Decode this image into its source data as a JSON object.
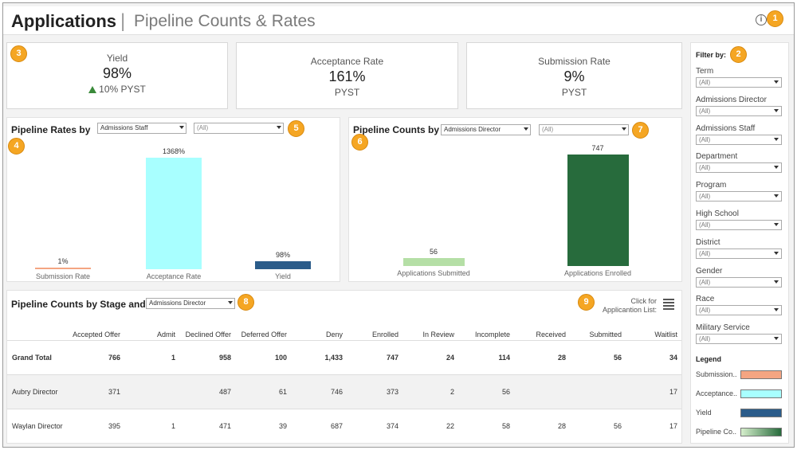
{
  "header": {
    "title": "Applications",
    "separator": "|",
    "subtitle": "Pipeline Counts & Rates",
    "info_glyph": "i"
  },
  "badges": [
    "1",
    "2",
    "3",
    "4",
    "5",
    "6",
    "7",
    "8",
    "9"
  ],
  "kpis": [
    {
      "label": "Yield",
      "value": "98%",
      "delta_icon": "triangle-up-icon",
      "delta_text": "10% PYST"
    },
    {
      "label": "Acceptance Rate",
      "value": "161%",
      "sub": "PYST"
    },
    {
      "label": "Submission Rate",
      "value": "9%",
      "sub": "PYST"
    }
  ],
  "pipeline_rates": {
    "title": "Pipeline Rates by",
    "dropdown": "Admissions Staff",
    "filter": "(All)"
  },
  "pipeline_counts": {
    "title": "Pipeline Counts by",
    "dropdown": "Admissions Director",
    "filter": "(All)"
  },
  "chart_data": [
    {
      "type": "bar",
      "categories": [
        "Submission Rate",
        "Acceptance Rate",
        "Yield"
      ],
      "values": [
        1,
        1368,
        98
      ],
      "value_labels": [
        "1%",
        "1368%",
        "98%"
      ],
      "ylim": [
        0,
        1368
      ],
      "colors": [
        "#f4a582",
        "#a8ffff",
        "#2b5c8a"
      ]
    },
    {
      "type": "bar",
      "categories": [
        "Applications Submitted",
        "Applications Enrolled"
      ],
      "values": [
        56,
        747
      ],
      "value_labels": [
        "56",
        "747"
      ],
      "ylim": [
        0,
        747
      ],
      "colors": [
        "#b5dfa6",
        "#276b3c"
      ]
    }
  ],
  "stage_table": {
    "title": "Pipeline Counts by Stage and",
    "dropdown": "Admissions Director",
    "click_for": "Click for",
    "app_list": "Applicantion List:",
    "columns": [
      "Accepted Offer",
      "Admit",
      "Declined Offer",
      "Deferred Offer",
      "Deny",
      "Enrolled",
      "In Review",
      "Incomplete",
      "Received",
      "Submitted",
      "Waitlist"
    ],
    "rows": [
      {
        "label": "Grand Total",
        "cells": [
          "766",
          "1",
          "958",
          "100",
          "1,433",
          "747",
          "24",
          "114",
          "28",
          "56",
          "34"
        ]
      },
      {
        "label": "Aubry Director",
        "cells": [
          "371",
          "",
          "487",
          "61",
          "746",
          "373",
          "2",
          "56",
          "",
          "",
          "17"
        ]
      },
      {
        "label": "Waylan Director",
        "cells": [
          "395",
          "1",
          "471",
          "39",
          "687",
          "374",
          "22",
          "58",
          "28",
          "56",
          "17"
        ]
      }
    ]
  },
  "sidebar": {
    "title": "Filter by:",
    "filters": [
      {
        "label": "Term",
        "value": "(All)"
      },
      {
        "label": "Admissions Director",
        "value": "(All)"
      },
      {
        "label": "Admissions Staff",
        "value": "(All)"
      },
      {
        "label": "Department",
        "value": "(All)"
      },
      {
        "label": "Program",
        "value": "(All)"
      },
      {
        "label": "High School",
        "value": "(All)"
      },
      {
        "label": "District",
        "value": "(All)"
      },
      {
        "label": "Gender",
        "value": "(All)"
      },
      {
        "label": "Race",
        "value": "(All)"
      },
      {
        "label": "Military Service",
        "value": "(All)"
      }
    ],
    "legend_title": "Legend",
    "legend": [
      {
        "label": "Submission..",
        "color": "#f4a582"
      },
      {
        "label": "Acceptance..",
        "color": "#a8ffff"
      },
      {
        "label": "Yield",
        "color": "#2b5c8a"
      },
      {
        "label": "Pipeline Co..",
        "color": "#276b3c"
      }
    ]
  }
}
